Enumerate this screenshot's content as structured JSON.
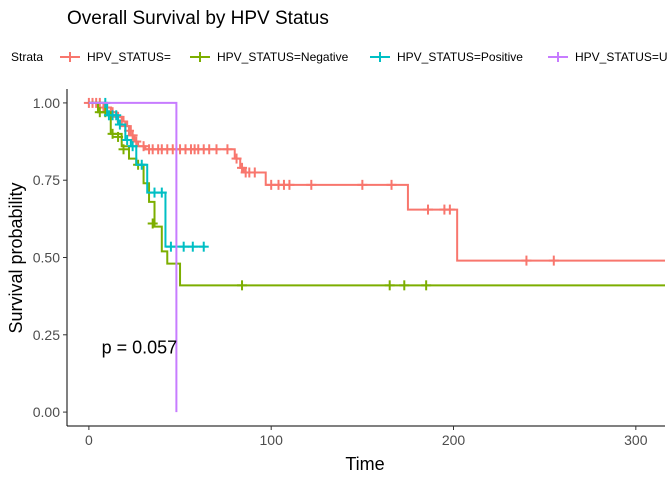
{
  "chart_data": {
    "type": "line",
    "title": "Overall Survival by HPV Status",
    "xlabel": "Time",
    "ylabel": "Survival probability",
    "xlim": [
      -12,
      316
    ],
    "ylim": [
      -0.045,
      1.045
    ],
    "x_ticks": [
      0,
      100,
      200,
      300
    ],
    "x_tick_labels": [
      "0",
      "100",
      "200",
      "300"
    ],
    "y_ticks": [
      0,
      0.25,
      0.5,
      0.75,
      1
    ],
    "y_tick_labels": [
      "0.00",
      "0.25",
      "0.50",
      "0.75",
      "1.00"
    ],
    "grid": false,
    "legend_title": "Strata",
    "legend_position": "top",
    "annotation": "p = 0.057",
    "annotation_at": {
      "x": 7,
      "y": 0.19
    },
    "series": [
      {
        "name": "HPV_STATUS=",
        "color": "#F8766D",
        "steps": [
          [
            0,
            1
          ],
          [
            8,
            0.985
          ],
          [
            12,
            0.97
          ],
          [
            15,
            0.955
          ],
          [
            19,
            0.94
          ],
          [
            21,
            0.925
          ],
          [
            23,
            0.895
          ],
          [
            25,
            0.875
          ],
          [
            27,
            0.86
          ],
          [
            31,
            0.85
          ],
          [
            80,
            0.82
          ],
          [
            83,
            0.79
          ],
          [
            85,
            0.775
          ],
          [
            97,
            0.735
          ],
          [
            175,
            0.655
          ],
          [
            202,
            0.49
          ],
          [
            316,
            0.49
          ]
        ],
        "censors": [
          [
            0,
            1
          ],
          [
            2,
            1
          ],
          [
            4,
            1
          ],
          [
            6,
            1
          ],
          [
            8,
            0.985
          ],
          [
            10,
            0.985
          ],
          [
            13,
            0.97
          ],
          [
            16,
            0.955
          ],
          [
            18,
            0.94
          ],
          [
            20,
            0.925
          ],
          [
            22,
            0.91
          ],
          [
            24,
            0.895
          ],
          [
            26,
            0.875
          ],
          [
            30,
            0.86
          ],
          [
            33,
            0.85
          ],
          [
            35,
            0.85
          ],
          [
            38,
            0.85
          ],
          [
            40,
            0.85
          ],
          [
            43,
            0.85
          ],
          [
            46,
            0.85
          ],
          [
            50,
            0.85
          ],
          [
            53,
            0.85
          ],
          [
            56,
            0.85
          ],
          [
            58,
            0.85
          ],
          [
            60,
            0.85
          ],
          [
            63,
            0.85
          ],
          [
            66,
            0.85
          ],
          [
            70,
            0.85
          ],
          [
            76,
            0.85
          ],
          [
            81,
            0.82
          ],
          [
            84,
            0.79
          ],
          [
            86,
            0.775
          ],
          [
            88,
            0.775
          ],
          [
            91,
            0.775
          ],
          [
            100,
            0.735
          ],
          [
            104,
            0.735
          ],
          [
            107,
            0.735
          ],
          [
            110,
            0.735
          ],
          [
            122,
            0.735
          ],
          [
            150,
            0.735
          ],
          [
            166,
            0.735
          ],
          [
            186,
            0.655
          ],
          [
            195,
            0.655
          ],
          [
            198,
            0.655
          ],
          [
            240,
            0.49
          ],
          [
            255,
            0.49
          ]
        ]
      },
      {
        "name": "HPV_STATUS=Negative",
        "color": "#7CAE00",
        "steps": [
          [
            0,
            1
          ],
          [
            5,
            0.97
          ],
          [
            12,
            0.9
          ],
          [
            18,
            0.86
          ],
          [
            22,
            0.82
          ],
          [
            26,
            0.8
          ],
          [
            30,
            0.74
          ],
          [
            33,
            0.68
          ],
          [
            36,
            0.6
          ],
          [
            40,
            0.52
          ],
          [
            43,
            0.48
          ],
          [
            50,
            0.41
          ],
          [
            316,
            0.41
          ]
        ],
        "censors": [
          [
            6,
            0.97
          ],
          [
            9,
            0.97
          ],
          [
            13,
            0.9
          ],
          [
            16,
            0.89
          ],
          [
            19,
            0.85
          ],
          [
            27,
            0.8
          ],
          [
            35,
            0.61
          ],
          [
            84,
            0.41
          ],
          [
            165,
            0.41
          ],
          [
            173,
            0.41
          ],
          [
            185,
            0.41
          ]
        ]
      },
      {
        "name": "HPV_STATUS=Positive",
        "color": "#00BFC4",
        "steps": [
          [
            0,
            1
          ],
          [
            10,
            0.96
          ],
          [
            16,
            0.93
          ],
          [
            20,
            0.88
          ],
          [
            23,
            0.86
          ],
          [
            26,
            0.8
          ],
          [
            32,
            0.71
          ],
          [
            42,
            0.535
          ],
          [
            64,
            0.535
          ]
        ],
        "censors": [
          [
            9,
            1
          ],
          [
            11,
            0.96
          ],
          [
            13,
            0.96
          ],
          [
            15,
            0.96
          ],
          [
            17,
            0.93
          ],
          [
            21,
            0.88
          ],
          [
            24,
            0.86
          ],
          [
            29,
            0.8
          ],
          [
            36,
            0.71
          ],
          [
            40,
            0.71
          ],
          [
            45,
            0.535
          ],
          [
            52,
            0.535
          ],
          [
            57,
            0.535
          ],
          [
            63,
            0.535
          ]
        ]
      },
      {
        "name": "HPV_STATUS=Unknown",
        "legend_label": "HPV_STATUS=U",
        "color": "#C77CFF",
        "steps": [
          [
            0,
            1
          ],
          [
            48,
            1
          ],
          [
            48,
            0.0
          ],
          [
            48,
            0.0
          ]
        ],
        "censors": []
      }
    ]
  }
}
